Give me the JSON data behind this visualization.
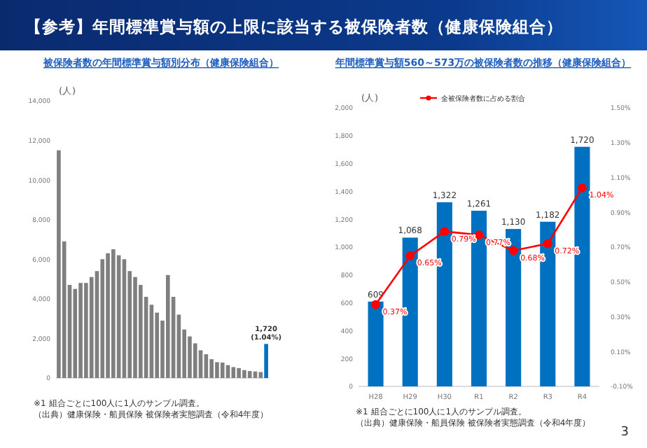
{
  "chart_data": [
    {
      "type": "other",
      "title": "【参考】年間標準賞与額の上限に該当する被保険者数（健康保険組合）",
      "annotations": [
        "3"
      ]
    },
    {
      "type": "bar",
      "title": "被保険者数の年間標準賞与額別分布（健康保険組合）",
      "ylabel": "(人)",
      "categories": [
        null,
        null,
        null,
        null,
        null,
        null,
        null,
        null,
        null,
        null,
        null,
        null,
        null,
        null,
        null,
        null,
        null,
        null,
        null,
        null,
        null,
        null,
        null,
        null,
        null,
        null,
        null,
        null,
        null,
        null,
        null,
        null,
        null,
        null,
        null,
        null,
        null,
        null,
        null
      ],
      "values": [
        11500,
        6900,
        4700,
        4500,
        4800,
        4800,
        5100,
        5400,
        6000,
        6300,
        6500,
        6200,
        6000,
        5400,
        5100,
        4700,
        4100,
        3700,
        3300,
        2900,
        5200,
        4100,
        3200,
        2450,
        2100,
        1750,
        1400,
        1200,
        950,
        800,
        780,
        650,
        550,
        500,
        400,
        350,
        330,
        300,
        1720
      ],
      "colors": [
        "#7f7f7f",
        "#7f7f7f",
        "#7f7f7f",
        "#7f7f7f",
        "#7f7f7f",
        "#7f7f7f",
        "#7f7f7f",
        "#7f7f7f",
        "#7f7f7f",
        "#7f7f7f",
        "#7f7f7f",
        "#7f7f7f",
        "#7f7f7f",
        "#7f7f7f",
        "#7f7f7f",
        "#7f7f7f",
        "#7f7f7f",
        "#7f7f7f",
        "#7f7f7f",
        "#7f7f7f",
        "#7f7f7f",
        "#7f7f7f",
        "#7f7f7f",
        "#7f7f7f",
        "#7f7f7f",
        "#7f7f7f",
        "#7f7f7f",
        "#7f7f7f",
        "#7f7f7f",
        "#7f7f7f",
        "#7f7f7f",
        "#7f7f7f",
        "#7f7f7f",
        "#7f7f7f",
        "#7f7f7f",
        "#7f7f7f",
        "#7f7f7f",
        "#7f7f7f",
        "#0070c0"
      ],
      "value_labels": [
        null,
        null,
        null,
        null,
        null,
        null,
        null,
        null,
        null,
        null,
        null,
        null,
        null,
        null,
        null,
        null,
        null,
        null,
        null,
        null,
        null,
        null,
        null,
        null,
        null,
        null,
        null,
        null,
        null,
        null,
        null,
        null,
        null,
        null,
        null,
        null,
        null,
        null,
        "1,720\n(1.04%)"
      ],
      "ylim": [
        0,
        14000
      ],
      "yticks": [
        0,
        {
          "value": 2000,
          "label": "2,000"
        },
        {
          "value": 4000,
          "label": "4,000"
        },
        {
          "value": 6000,
          "label": "6,000"
        },
        {
          "value": 8000,
          "label": "8,000"
        },
        {
          "value": 10000,
          "label": "10,000"
        },
        {
          "value": 12000,
          "label": "12,000"
        },
        {
          "value": 14000,
          "label": "14,000"
        }
      ],
      "annotations": [
        "※1 組合ごとに100人に1人のサンプル調査。",
        "（出典）健康保険・船員保険 被保険者実態調査（令和4年度）"
      ]
    },
    {
      "type": "bar",
      "title": "年間標準賞与額560～573万の被保険者数の推移（健康保険組合）",
      "ylabel": "(人)",
      "categories": [
        "H28",
        "H29",
        "H30",
        "R1",
        "R2",
        "R3",
        "R4"
      ],
      "series": [
        {
          "type": "bar",
          "color": "#0070c0",
          "values": [
            609,
            1068,
            1322,
            1261,
            1130,
            1182,
            1720
          ],
          "value_labels": [
            "609",
            "1,068",
            "1,322",
            "1,261",
            "1,130",
            "1,182",
            "1,720"
          ]
        },
        {
          "type": "line",
          "axis": "y2",
          "name": "全被保険者数に占める割合",
          "color": "#ff0000",
          "values": [
            0.37,
            0.65,
            0.79,
            0.77,
            0.68,
            0.72,
            1.04
          ],
          "value_labels": [
            "0.37%",
            "0.65%",
            "0.79%",
            "0.77%",
            "0.68%",
            "0.72%",
            "1.04%"
          ]
        }
      ],
      "ylim": [
        0,
        2000
      ],
      "yticks": [
        0,
        200,
        400,
        600,
        800,
        {
          "value": 1000,
          "label": "1,000"
        },
        {
          "value": 1200,
          "label": "1,200"
        },
        {
          "value": 1400,
          "label": "1,400"
        },
        {
          "value": 1600,
          "label": "1,600"
        },
        {
          "value": 1800,
          "label": "1,800"
        },
        {
          "value": 2000,
          "label": "2,000"
        }
      ],
      "y2lim": [
        -0.1,
        1.5
      ],
      "y2ticks": [
        {
          "value": -0.1,
          "label": "-0.10%"
        },
        {
          "value": 0.1,
          "label": "0.10%"
        },
        {
          "value": 0.3,
          "label": "0.30%"
        },
        {
          "value": 0.5,
          "label": "0.50%"
        },
        {
          "value": 0.7,
          "label": "0.70%"
        },
        {
          "value": 0.9,
          "label": "0.90%"
        },
        {
          "value": 1.1,
          "label": "1.10%"
        },
        {
          "value": 1.3,
          "label": "1.30%"
        },
        {
          "value": 1.5,
          "label": "1.50%"
        }
      ],
      "legend": "top",
      "marker": "circle",
      "annotations": [
        "※1 組合ごとに100人に1人のサンプル調査。",
        "（出典）健康保険・船員保険 被保険者実態調査（令和4年度）"
      ]
    }
  ]
}
